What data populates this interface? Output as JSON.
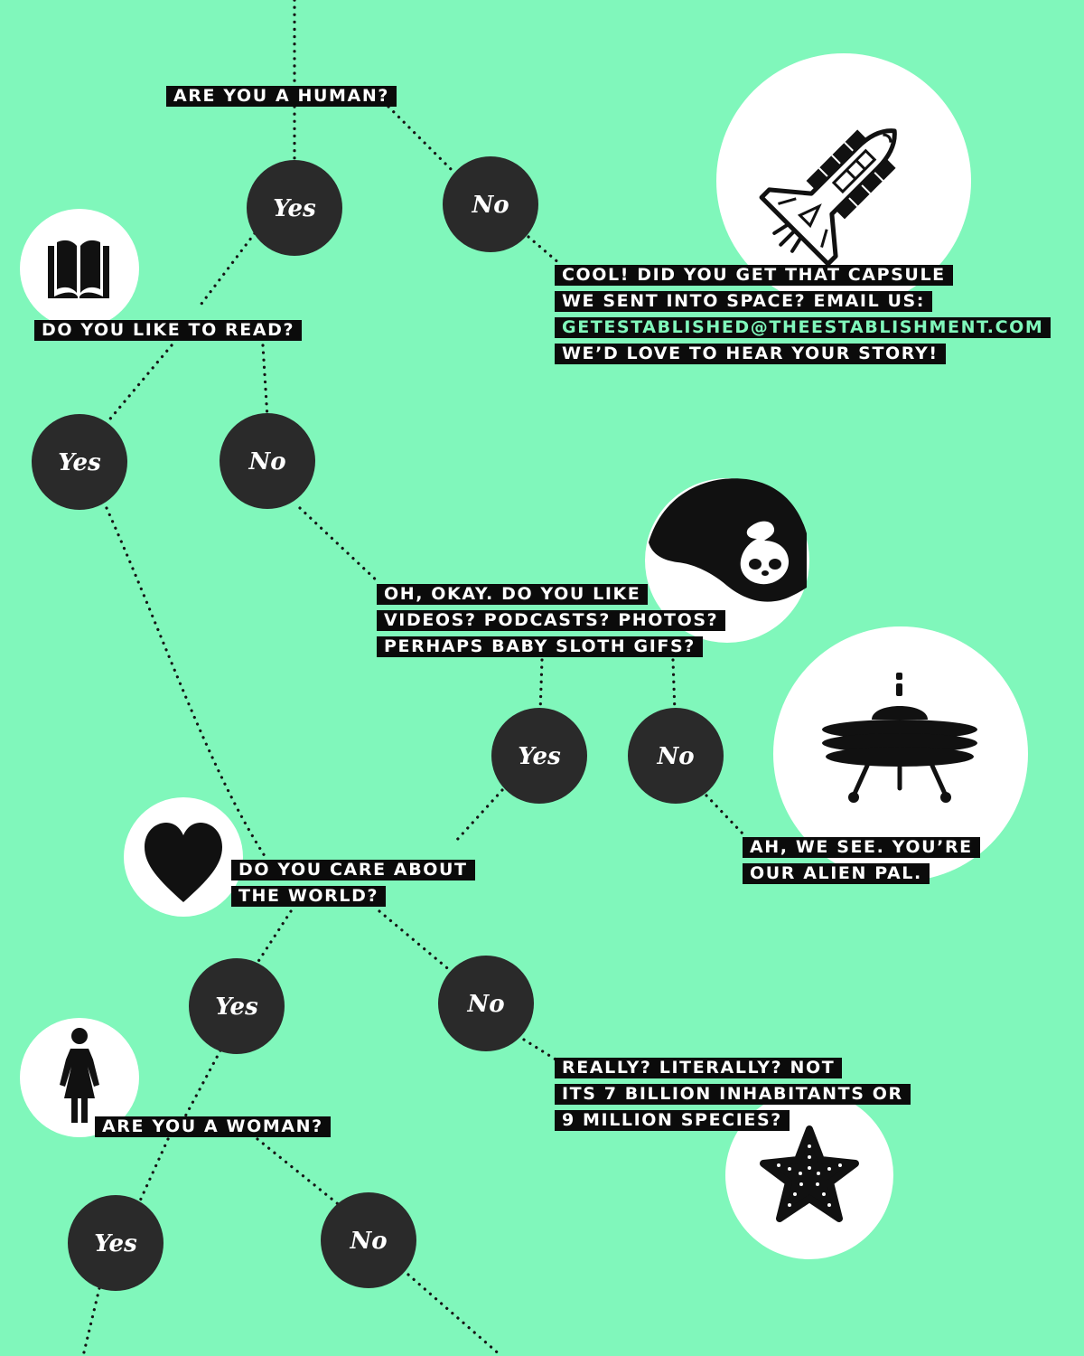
{
  "colors": {
    "background": "#80f7bb",
    "node": "#2a2a2a",
    "label_background": "#0b0b0b",
    "label_text": "#ffffff",
    "email_text": "#80f7bb",
    "illustration_background": "#ffffff"
  },
  "questions": {
    "human": {
      "lines": [
        "ARE YOU A HUMAN?"
      ]
    },
    "read": {
      "lines": [
        "DO YOU LIKE TO READ?"
      ]
    },
    "media": {
      "lines": [
        "OH, OKAY. DO YOU LIKE",
        "VIDEOS? PODCASTS? PHOTOS?",
        "PERHAPS BABY SLOTH GIFS?"
      ]
    },
    "world": {
      "lines": [
        "DO YOU CARE ABOUT",
        "THE WORLD?"
      ]
    },
    "woman": {
      "lines": [
        "ARE YOU A WOMAN?"
      ]
    }
  },
  "outcomes": {
    "space": {
      "lines": [
        "COOL! DID YOU GET THAT CAPSULE",
        "WE SENT INTO SPACE? EMAIL US:",
        "GETESTABLISHED@THEESTABLISHMENT.COM",
        "WE’D LOVE TO HEAR YOUR STORY!"
      ],
      "accent_line_index": 2
    },
    "alien": {
      "lines": [
        "AH, WE SEE. YOU’RE",
        "OUR ALIEN PAL."
      ]
    },
    "really": {
      "lines": [
        "REALLY? LITERALLY? NOT",
        "ITS 7 BILLION INHABITANTS OR",
        "9 MILLION SPECIES?"
      ]
    }
  },
  "answers": {
    "human_yes": "Yes",
    "human_no": "No",
    "read_yes": "Yes",
    "read_no": "No",
    "media_yes": "Yes",
    "media_no": "No",
    "world_yes": "Yes",
    "world_no": "No",
    "woman_yes": "Yes",
    "woman_no": "No"
  },
  "icons": [
    "space-shuttle-icon",
    "open-book-icon",
    "baby-sloth-icon",
    "ufo-icon",
    "heart-icon",
    "woman-icon",
    "starfish-icon"
  ]
}
